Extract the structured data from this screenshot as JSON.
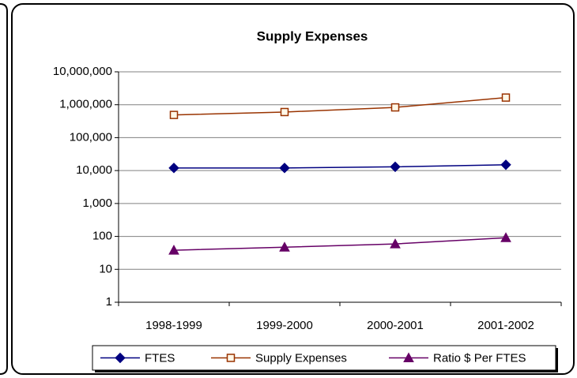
{
  "chart_data": {
    "type": "line",
    "title": "Supply Expenses",
    "categories": [
      "1998-1999",
      "1999-2000",
      "2000-2001",
      "2001-2002"
    ],
    "yscale": "log",
    "ylim": [
      1,
      10000000
    ],
    "yticks": [
      1,
      10,
      100,
      {
        "value": 1000,
        "label": "1,000"
      },
      {
        "value": 10000,
        "label": "10,000"
      },
      {
        "value": 100000,
        "label": "100,000"
      },
      {
        "value": 1000000,
        "label": "1,000,000"
      },
      {
        "value": 10000000,
        "label": "10,000,000"
      }
    ],
    "grid": true,
    "legend": "bottom",
    "series": [
      {
        "name": "FTES",
        "color": "#000080",
        "marker": "diamond",
        "values": [
          12000,
          12000,
          13000,
          15000
        ]
      },
      {
        "name": "Supply Expenses",
        "color": "#993300",
        "marker": "square",
        "values": [
          490000,
          600000,
          830000,
          1650000
        ]
      },
      {
        "name": "Ratio $ Per FTES",
        "color": "#660066",
        "marker": "triangle",
        "values": [
          38,
          47,
          59,
          91
        ]
      }
    ]
  }
}
